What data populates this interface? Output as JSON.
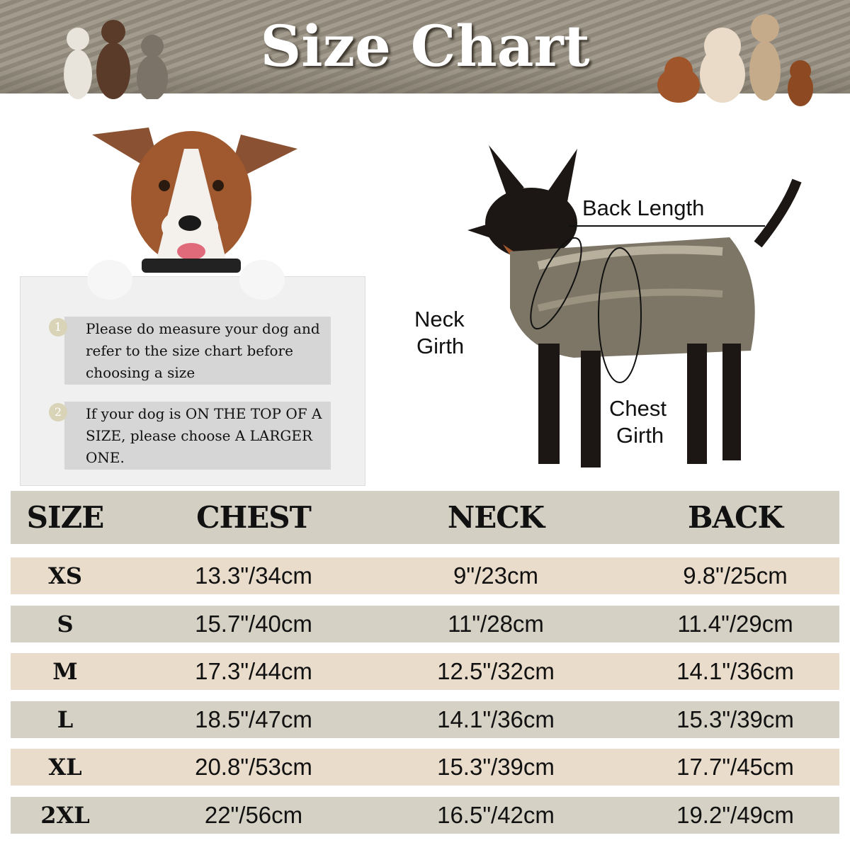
{
  "title": "Size Chart",
  "tips": [
    {
      "number": "1",
      "text": "Please do measure your dog and refer to the size chart before choosing a size"
    },
    {
      "number": "2",
      "text": "If your dog is ON THE TOP OF A SIZE, please choose A LARGER ONE."
    }
  ],
  "diagram_labels": {
    "back_length": "Back Length",
    "neck_girth_1": "Neck",
    "neck_girth_2": "Girth",
    "chest_girth_1": "Chest",
    "chest_girth_2": "Girth"
  },
  "table": {
    "headers": [
      "SIZE",
      "CHEST",
      "NECK",
      "BACK"
    ],
    "rows": [
      [
        "XS",
        "13.3\"/34cm",
        "9\"/23cm",
        "9.8\"/25cm"
      ],
      [
        "S",
        "15.7\"/40cm",
        "11\"/28cm",
        "11.4\"/29cm"
      ],
      [
        "M",
        "17.3\"/44cm",
        "12.5\"/32cm",
        "14.1\"/36cm"
      ],
      [
        "L",
        "18.5\"/47cm",
        "14.1\"/36cm",
        "15.3\"/39cm"
      ],
      [
        "XL",
        "20.8\"/53cm",
        "15.3\"/39cm",
        "17.7\"/45cm"
      ],
      [
        "2XL",
        "22\"/56cm",
        "16.5\"/42cm",
        "19.2\"/49cm"
      ]
    ]
  },
  "colors": {
    "header_row": "#d3cfc2",
    "row_beige": "#e9dccb",
    "row_gray": "#d5d1c4",
    "banner": "#978f82"
  }
}
